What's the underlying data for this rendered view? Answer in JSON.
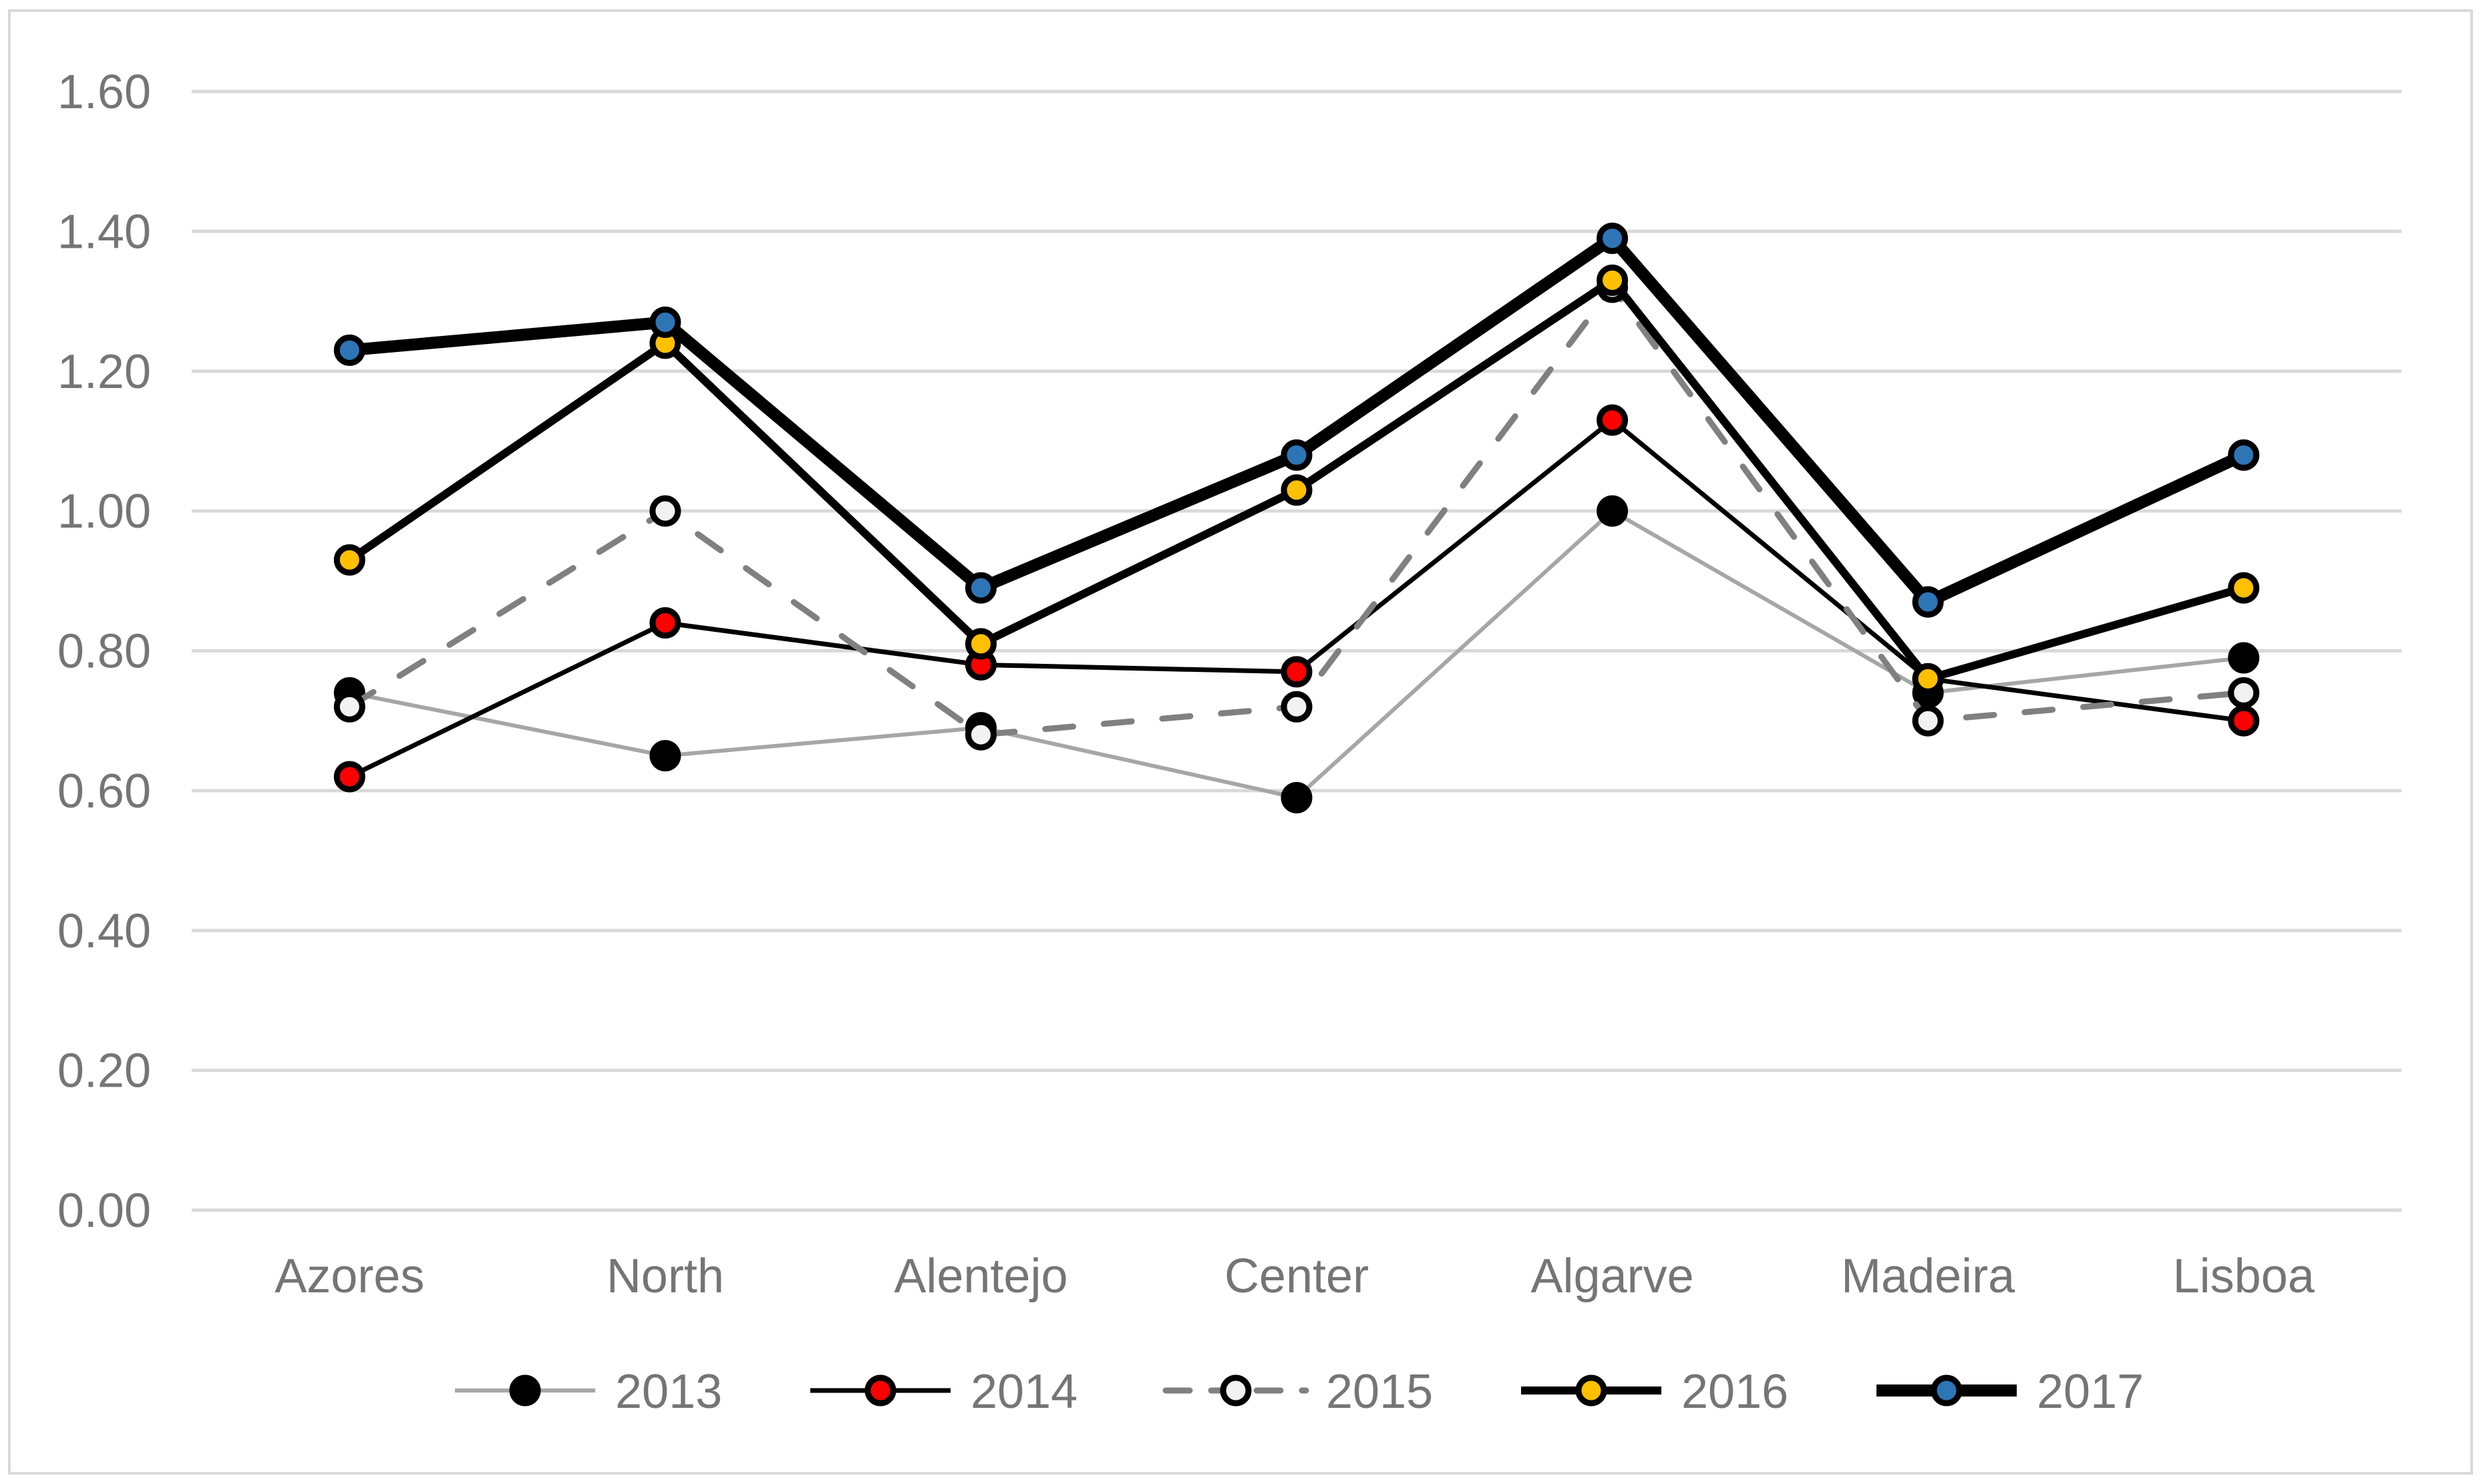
{
  "chart_data": {
    "type": "line",
    "title": "",
    "categories": [
      "Azores",
      "North",
      "Alentejo",
      "Center",
      "Algarve",
      "Madeira",
      "Lisboa"
    ],
    "series": [
      {
        "name": "2013",
        "values": [
          0.74,
          0.65,
          0.69,
          0.59,
          1.0,
          0.74,
          0.79
        ],
        "line_color": "#A6A6A6",
        "line_width": 6,
        "line_style": "solid",
        "marker_fill": "#000000"
      },
      {
        "name": "2014",
        "values": [
          0.62,
          0.84,
          0.78,
          0.77,
          1.13,
          0.76,
          0.7
        ],
        "line_color": "#000000",
        "line_width": 7,
        "line_style": "solid",
        "marker_fill": "#FF0000"
      },
      {
        "name": "2015",
        "values": [
          0.72,
          1.0,
          0.68,
          0.72,
          1.32,
          0.7,
          0.74
        ],
        "line_color": "#808080",
        "line_width": 9,
        "line_style": "dashed",
        "marker_fill": "#F2F2F2"
      },
      {
        "name": "2016",
        "values": [
          0.93,
          1.24,
          0.81,
          1.03,
          1.33,
          0.76,
          0.89
        ],
        "line_color": "#000000",
        "line_width": 12,
        "line_style": "solid",
        "marker_fill": "#FFC000"
      },
      {
        "name": "2017",
        "values": [
          1.23,
          1.27,
          0.89,
          1.08,
          1.39,
          0.87,
          1.08
        ],
        "line_color": "#000000",
        "line_width": 18,
        "line_style": "solid",
        "marker_fill": "#2E75B6"
      }
    ],
    "xlabel": "",
    "ylabel": "",
    "ylim": [
      0.0,
      1.6
    ],
    "y_axis": {
      "min": 0.0,
      "max": 1.6,
      "step": 0.2,
      "tick_labels": [
        "0.00",
        "0.20",
        "0.40",
        "0.60",
        "0.80",
        "1.00",
        "1.20",
        "1.40",
        "1.60"
      ]
    },
    "grid": true,
    "legend": {
      "position": "bottom",
      "entries": [
        "2013",
        "2014",
        "2015",
        "2016",
        "2017"
      ]
    },
    "colors": {
      "gridline": "#D9D9D9",
      "axis_text": "#757575",
      "legend_text": "#757575",
      "chart_border": "#D9D9D9",
      "background": "#FFFFFF",
      "marker_outline": "#000000"
    }
  }
}
